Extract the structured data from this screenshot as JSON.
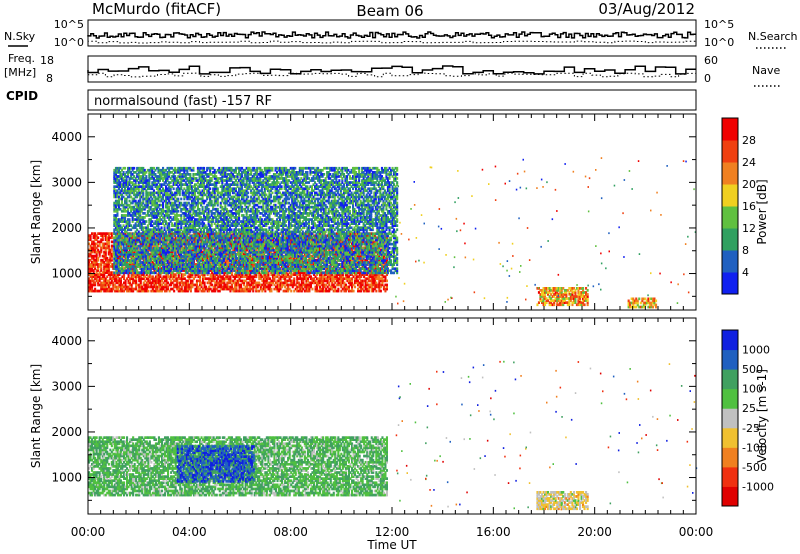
{
  "header": {
    "station": "McMurdo (fitACF)",
    "beam": "Beam 06",
    "date": "03/Aug/2012"
  },
  "noise_panel": {
    "left_label": "N.Sky",
    "left_ticks": [
      "10^5",
      "10^0"
    ],
    "right_ticks": [
      "10^5",
      "10^0"
    ],
    "right_label": "N.Search"
  },
  "freq_panel": {
    "left_label_line1": "Freq.",
    "left_label_line2": "[MHz]",
    "left_ticks": [
      "18",
      "8"
    ],
    "right_ticks": [
      "60",
      "0"
    ],
    "right_label": "Nave"
  },
  "cpid_panel": {
    "label": "CPID",
    "text": "normalsound (fast) -157 RF"
  },
  "x_axis": {
    "ticks": [
      "00:00",
      "04:00",
      "08:00",
      "12:00",
      "16:00",
      "20:00",
      "00:00"
    ],
    "label": "Time UT"
  },
  "colors": {
    "power_scale": [
      "#1020f0",
      "#2060c0",
      "#30a060",
      "#60c040",
      "#f0d020",
      "#f08020",
      "#f04010",
      "#f00000"
    ],
    "velocity_scale": [
      "#e00000",
      "#f03010",
      "#f08020",
      "#f0c030",
      "#c0c0c0",
      "#50c040",
      "#40a060",
      "#2060c0",
      "#1020e0"
    ]
  },
  "chart_data": [
    {
      "type": "heatmap",
      "ylabel": "Slant Range [km]",
      "ylim": [
        200,
        4500
      ],
      "yticks": [
        "1000",
        "2000",
        "3000",
        "4000"
      ],
      "xlim": [
        "00:00",
        "00:00"
      ],
      "colorbar": {
        "label": "Power [dB]",
        "ticks": [
          "4",
          "8",
          "12",
          "16",
          "20",
          "24",
          "28"
        ],
        "range": [
          0,
          30
        ]
      },
      "regions": [
        {
          "t_start": 0.0,
          "t_end": 11.8,
          "r_min": 600,
          "r_max": 1900,
          "value": 26
        },
        {
          "t_start": 1.0,
          "t_end": 12.2,
          "r_min": 1000,
          "r_max": 3300,
          "value": 8
        },
        {
          "t_start": 17.7,
          "t_end": 19.7,
          "r_min": 300,
          "r_max": 700,
          "value": 20
        },
        {
          "t_start": 21.3,
          "t_end": 22.4,
          "r_min": 250,
          "r_max": 450,
          "value": 20
        }
      ]
    },
    {
      "type": "heatmap",
      "ylabel": "Slant Range [km]",
      "ylim": [
        200,
        4500
      ],
      "yticks": [
        "1000",
        "2000",
        "3000",
        "4000"
      ],
      "xlim": [
        "00:00",
        "00:00"
      ],
      "colorbar": {
        "label": "Velocity [m s-1]",
        "ticks": [
          "1000",
          "500",
          "100",
          "25",
          "-25",
          "-100",
          "-500",
          "-1000"
        ],
        "range": [
          -1000,
          1000
        ]
      },
      "regions": [
        {
          "t_start": 0.0,
          "t_end": 11.8,
          "r_min": 600,
          "r_max": 1900,
          "value": 300
        },
        {
          "t_start": 3.5,
          "t_end": 6.5,
          "r_min": 900,
          "r_max": 1700,
          "value": 700
        },
        {
          "t_start": 17.7,
          "t_end": 19.7,
          "r_min": 300,
          "r_max": 700,
          "value": -100
        }
      ]
    }
  ]
}
